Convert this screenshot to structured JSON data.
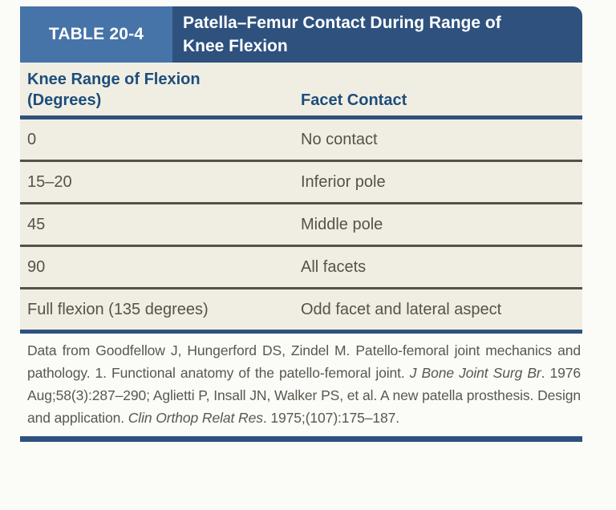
{
  "table": {
    "label": "TABLE 20-4",
    "title_line1": "Patella–Femur Contact During Range of",
    "title_line2": "Knee Flexion",
    "columns": {
      "col1_line1": "Knee Range of Flexion",
      "col1_line2": "(Degrees)",
      "col2": "Facet Contact"
    },
    "rows": [
      {
        "range": "0",
        "contact": "No contact"
      },
      {
        "range": "15–20",
        "contact": "Inferior pole"
      },
      {
        "range": "45",
        "contact": "Middle pole"
      },
      {
        "range": "90",
        "contact": "All facets"
      },
      {
        "range": "Full flexion (135 degrees)",
        "contact": "Odd facet and lateral aspect"
      }
    ],
    "footnote": {
      "part1": "Data from Goodfellow J, Hungerford DS, Zindel M. Patello-femoral joint mechanics and pathology. 1. Functional anatomy of the patello-femoral joint. ",
      "italic1": "J Bone Joint Surg Br",
      "part2": ". 1976 Aug;58(3):287–290; Aglietti P, Insall JN, Walker PS, et al. A new patella prosthesis. Design and application. ",
      "italic2": "Clin Orthop Relat Res",
      "part3": ". 1975;(107):175–187."
    },
    "colors": {
      "label_bg": "#4673a8",
      "band_bg": "#2e517e",
      "header_text_blue": "#1d4d7c",
      "body_bg": "#f0eee3",
      "body_text": "#55524a",
      "row_line": "#53524a",
      "rule_blue": "#2e517e",
      "page_bg": "#fbfbf8"
    }
  }
}
